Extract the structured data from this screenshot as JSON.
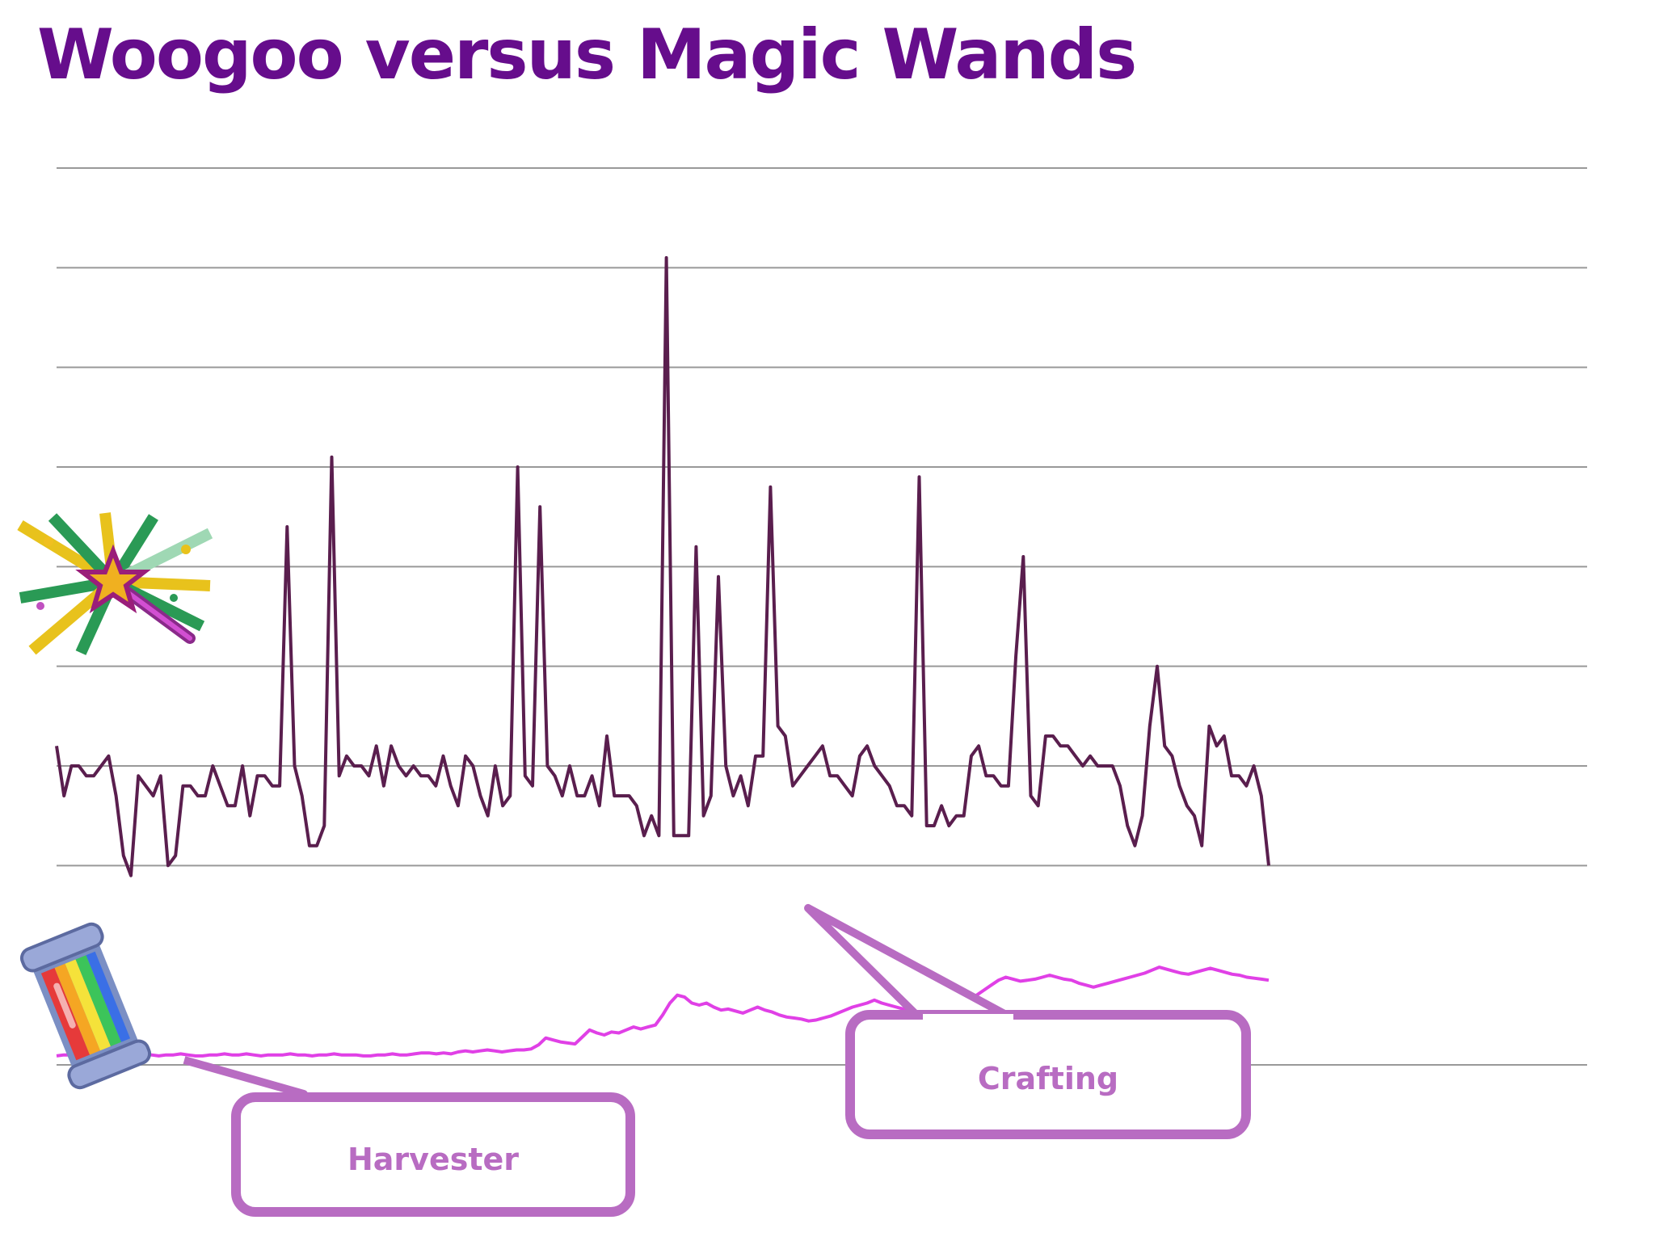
{
  "title": "Woogoo versus Magic Wands",
  "colors": {
    "title": "#660d8c",
    "woogoo_line": "#5a1e4e",
    "wand_line": "#e040e6",
    "callout": "#b86cc2",
    "gridline": "#999999"
  },
  "icons": {
    "woogoo": "magic-wand-sparkle-icon",
    "wand": "rainbow-jar-icon"
  },
  "chart_data": {
    "type": "line",
    "title": "",
    "xlabel": "",
    "ylabel": "",
    "ylim": [
      0,
      9
    ],
    "grid": true,
    "legend": "none",
    "series": [
      {
        "values": [
          3.2,
          2.7,
          3.0,
          3.0,
          2.9,
          2.9,
          3.0,
          3.1,
          2.7,
          2.1,
          1.9,
          2.9,
          2.8,
          2.7,
          2.9,
          2.0,
          2.1,
          2.8,
          2.8,
          2.7,
          2.7,
          3.0,
          2.8,
          2.6,
          2.6,
          3.0,
          2.5,
          2.9,
          2.9,
          2.8,
          2.8,
          5.4,
          3.0,
          2.7,
          2.2,
          2.2,
          2.4,
          6.1,
          2.9,
          3.1,
          3.0,
          3.0,
          2.9,
          3.2,
          2.8,
          3.2,
          3.0,
          2.9,
          3.0,
          2.9,
          2.9,
          2.8,
          3.1,
          2.8,
          2.6,
          3.1,
          3.0,
          2.7,
          2.5,
          3.0,
          2.6,
          2.7,
          6.0,
          2.9,
          2.8,
          5.6,
          3.0,
          2.9,
          2.7,
          3.0,
          2.7,
          2.7,
          2.9,
          2.6,
          3.3,
          2.7,
          2.7,
          2.7,
          2.6,
          2.3,
          2.5,
          2.3,
          8.1,
          2.3,
          2.3,
          2.3,
          5.2,
          2.5,
          2.7,
          4.9,
          3.0,
          2.7,
          2.9,
          2.6,
          3.1,
          3.1,
          5.8,
          3.4,
          3.3,
          2.8,
          2.9,
          3.0,
          3.1,
          3.2,
          2.9,
          2.9,
          2.8,
          2.7,
          3.1,
          3.2,
          3.0,
          2.9,
          2.8,
          2.6,
          2.6,
          2.5,
          5.9,
          2.4,
          2.4,
          2.6,
          2.4,
          2.5,
          2.5,
          3.1,
          3.2,
          2.9,
          2.9,
          2.8,
          2.8,
          4.1,
          5.1,
          2.7,
          2.6,
          3.3,
          3.3,
          3.2,
          3.2,
          3.1,
          3.0,
          3.1,
          3.0,
          3.0,
          3.0,
          2.8,
          2.4,
          2.2,
          2.5,
          3.4,
          4.0,
          3.2,
          3.1,
          2.8,
          2.6,
          2.5,
          2.2,
          3.4,
          3.2,
          3.3,
          2.9,
          2.9,
          2.8,
          3.0,
          2.7,
          2.0
        ],
        "color": "#5a1e4e"
      },
      {
        "values": [
          0.09,
          0.1,
          0.1,
          0.11,
          0.1,
          0.09,
          0.1,
          0.09,
          0.1,
          0.11,
          0.1,
          0.1,
          0.11,
          0.1,
          0.09,
          0.1,
          0.1,
          0.11,
          0.1,
          0.09,
          0.09,
          0.1,
          0.1,
          0.11,
          0.1,
          0.1,
          0.11,
          0.1,
          0.09,
          0.1,
          0.1,
          0.1,
          0.11,
          0.1,
          0.1,
          0.09,
          0.1,
          0.1,
          0.11,
          0.1,
          0.1,
          0.1,
          0.09,
          0.09,
          0.1,
          0.1,
          0.11,
          0.1,
          0.1,
          0.11,
          0.12,
          0.12,
          0.11,
          0.12,
          0.11,
          0.13,
          0.14,
          0.13,
          0.14,
          0.15,
          0.14,
          0.13,
          0.14,
          0.15,
          0.15,
          0.16,
          0.2,
          0.27,
          0.25,
          0.23,
          0.22,
          0.21,
          0.28,
          0.35,
          0.32,
          0.3,
          0.33,
          0.32,
          0.35,
          0.38,
          0.36,
          0.38,
          0.4,
          0.5,
          0.62,
          0.7,
          0.68,
          0.62,
          0.6,
          0.62,
          0.58,
          0.55,
          0.56,
          0.54,
          0.52,
          0.55,
          0.58,
          0.55,
          0.53,
          0.5,
          0.48,
          0.47,
          0.46,
          0.44,
          0.45,
          0.47,
          0.49,
          0.52,
          0.55,
          0.58,
          0.6,
          0.62,
          0.65,
          0.62,
          0.6,
          0.58,
          0.56,
          0.55,
          0.54,
          0.52,
          0.5,
          0.53,
          0.56,
          0.58,
          0.62,
          0.65,
          0.7,
          0.75,
          0.8,
          0.85,
          0.88,
          0.86,
          0.84,
          0.85,
          0.86,
          0.88,
          0.9,
          0.88,
          0.86,
          0.85,
          0.82,
          0.8,
          0.78,
          0.8,
          0.82,
          0.84,
          0.86,
          0.88,
          0.9,
          0.92,
          0.95,
          0.98,
          0.96,
          0.94,
          0.92,
          0.91,
          0.93,
          0.95,
          0.97,
          0.95,
          0.93,
          0.91,
          0.9,
          0.88,
          0.87,
          0.86,
          0.85
        ],
        "color": "#e040e6"
      }
    ],
    "annotations": [
      "Harvester",
      "Crafting"
    ]
  }
}
